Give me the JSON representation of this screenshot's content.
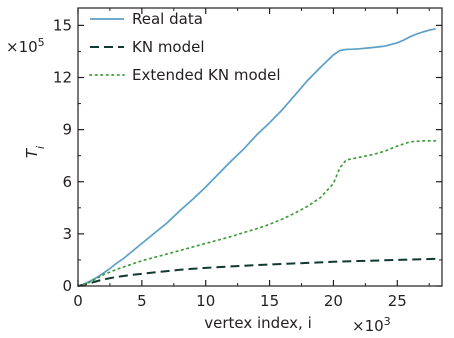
{
  "chart_data": {
    "type": "line",
    "title": "",
    "xlabel": "vertex index, i",
    "ylabel": "T_i",
    "x_multiplier": "×10",
    "x_multiplier_exp": "3",
    "y_multiplier": "×10",
    "y_multiplier_exp": "5",
    "xlim": [
      0,
      28.5
    ],
    "ylim": [
      0,
      16
    ],
    "xticks": [
      0,
      5,
      10,
      15,
      20,
      25
    ],
    "yticks": [
      0,
      3,
      6,
      9,
      12,
      15
    ],
    "grid": false,
    "legend_position": "top-left",
    "series": [
      {
        "name": "Real data",
        "color": "#5b9fc6",
        "style": "solid",
        "x": [
          0,
          0.5,
          1,
          1.5,
          2,
          2.5,
          3,
          3.5,
          4,
          5,
          6,
          7,
          8,
          9,
          10,
          11,
          12,
          13,
          14,
          15,
          16,
          17,
          18,
          19,
          20,
          20.5,
          21,
          21.5,
          22,
          23,
          24,
          25,
          25.5,
          26,
          26.5,
          27,
          27.5,
          28
        ],
        "y": [
          0,
          0.12,
          0.3,
          0.5,
          0.75,
          1.0,
          1.3,
          1.55,
          1.85,
          2.45,
          3.05,
          3.65,
          4.35,
          5.0,
          5.7,
          6.45,
          7.2,
          7.9,
          8.7,
          9.4,
          10.15,
          11.0,
          11.85,
          12.6,
          13.3,
          13.55,
          13.62,
          13.63,
          13.65,
          13.72,
          13.8,
          14.0,
          14.15,
          14.35,
          14.5,
          14.62,
          14.72,
          14.8
        ]
      },
      {
        "name": "KN model",
        "color": "#123834",
        "style": "dashed",
        "x": [
          0,
          0.5,
          1,
          1.5,
          2,
          3,
          4,
          5,
          6,
          7,
          8,
          9,
          10,
          12,
          14,
          16,
          18,
          20,
          22,
          24,
          26,
          28
        ],
        "y": [
          0,
          0.08,
          0.18,
          0.28,
          0.38,
          0.52,
          0.62,
          0.7,
          0.78,
          0.86,
          0.93,
          0.99,
          1.04,
          1.13,
          1.2,
          1.27,
          1.33,
          1.39,
          1.44,
          1.48,
          1.52,
          1.56
        ]
      },
      {
        "name": "Extended KN model",
        "color": "#3f9b3a",
        "style": "dotted",
        "x": [
          0,
          0.5,
          1,
          1.5,
          2,
          3,
          4,
          5,
          6,
          7,
          8,
          9,
          10,
          11,
          12,
          13,
          14,
          15,
          16,
          17,
          18,
          19,
          20,
          20.5,
          21,
          22,
          23,
          24,
          25,
          26,
          27,
          28
        ],
        "y": [
          0,
          0.1,
          0.25,
          0.45,
          0.65,
          0.95,
          1.2,
          1.45,
          1.65,
          1.85,
          2.05,
          2.25,
          2.45,
          2.65,
          2.85,
          3.08,
          3.3,
          3.55,
          3.85,
          4.2,
          4.6,
          5.1,
          5.9,
          6.8,
          7.25,
          7.4,
          7.55,
          7.75,
          8.05,
          8.3,
          8.35,
          8.35
        ]
      }
    ]
  }
}
